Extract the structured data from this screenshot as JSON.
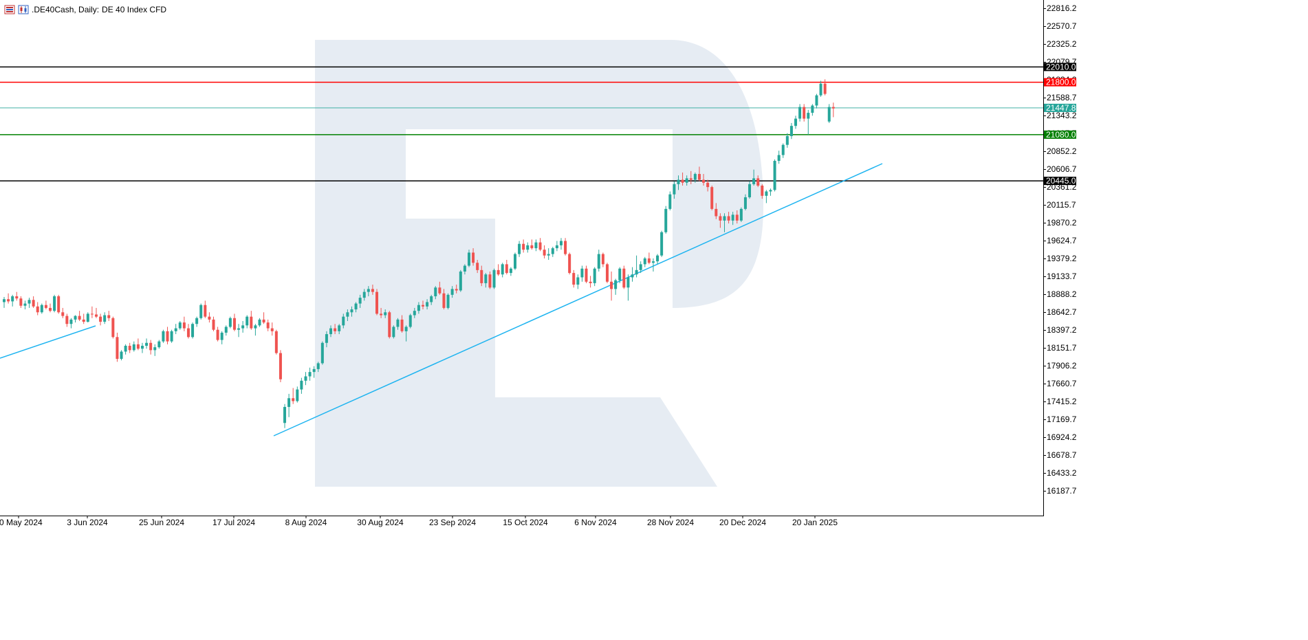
{
  "header": {
    "symbol": ".DE40Cash, Daily:",
    "description": "DE 40 Index CFD",
    "icons": [
      "chart-list-icon",
      "candles-icon"
    ]
  },
  "watermark": {
    "icon": "r-logo-icon"
  },
  "colors": {
    "up": "#26a69a",
    "down": "#ef5350",
    "trendline": "#1eb4f0",
    "resistance_black": "#000000",
    "resistance_red": "#ff0000",
    "support_green": "#008000",
    "current_price": "#26a69a",
    "watermark": "#e6ecf3"
  },
  "chart_data": {
    "type": "candlestick",
    "title": ".DE40Cash, Daily: DE 40 Index CFD",
    "timeframe": "Daily",
    "y_tick_labels": [
      "22816.2",
      "22570.7",
      "22325.2",
      "22079.7",
      "21834.2",
      "21588.7",
      "21343.2",
      "21097.7",
      "20852.2",
      "20606.7",
      "20361.2",
      "20115.7",
      "19870.2",
      "19624.7",
      "19379.2",
      "19133.7",
      "18888.2",
      "18642.7",
      "18397.2",
      "18151.7",
      "17906.2",
      "17660.7",
      "17415.2",
      "17169.7",
      "16924.2",
      "16678.7",
      "16433.2",
      "16187.7"
    ],
    "x_tick_labels": [
      "10 May 2024",
      "3 Jun 2024",
      "25 Jun 2024",
      "17 Jul 2024",
      "8 Aug 2024",
      "30 Aug 2024",
      "23 Sep 2024",
      "15 Oct 2024",
      "6 Nov 2024",
      "28 Nov 2024",
      "20 Dec 2024",
      "20 Jan 2025"
    ],
    "ylim": [
      16100,
      22900
    ],
    "levels": [
      {
        "value": 22010.0,
        "label": "22010.0",
        "color": "#000000"
      },
      {
        "value": 21800.0,
        "label": "21800.0",
        "color": "#ff0000"
      },
      {
        "value": 21447.8,
        "label": "21447.8",
        "color": "#26a69a",
        "kind": "current"
      },
      {
        "value": 21080.0,
        "label": "21080.0",
        "color": "#008000"
      },
      {
        "value": 20445.0,
        "label": "20445.0",
        "color": "#000000"
      }
    ],
    "trendlines": [
      {
        "from": {
          "bar": 0,
          "price": 18080
        },
        "to": {
          "bar": 23,
          "price": 18530
        }
      },
      {
        "from": {
          "bar": 67,
          "price": 17050
        },
        "to": {
          "bar": 214,
          "price": 20710
        }
      }
    ],
    "candles": [
      [
        18780,
        18850,
        18700,
        18820
      ],
      [
        18820,
        18900,
        18760,
        18790
      ],
      [
        18790,
        18880,
        18720,
        18860
      ],
      [
        18860,
        18920,
        18800,
        18830
      ],
      [
        18830,
        18860,
        18700,
        18730
      ],
      [
        18730,
        18800,
        18680,
        18760
      ],
      [
        18760,
        18840,
        18700,
        18810
      ],
      [
        18810,
        18860,
        18700,
        18720
      ],
      [
        18720,
        18780,
        18600,
        18640
      ],
      [
        18640,
        18760,
        18620,
        18740
      ],
      [
        18740,
        18800,
        18680,
        18700
      ],
      [
        18700,
        18760,
        18640,
        18660
      ],
      [
        18660,
        18880,
        18640,
        18860
      ],
      [
        18860,
        18880,
        18620,
        18640
      ],
      [
        18640,
        18700,
        18560,
        18590
      ],
      [
        18590,
        18620,
        18440,
        18480
      ],
      [
        18480,
        18560,
        18420,
        18540
      ],
      [
        18540,
        18600,
        18500,
        18590
      ],
      [
        18590,
        18660,
        18520,
        18540
      ],
      [
        18540,
        18620,
        18480,
        18510
      ],
      [
        18510,
        18640,
        18500,
        18620
      ],
      [
        18620,
        18720,
        18560,
        18610
      ],
      [
        18610,
        18700,
        18560,
        18580
      ],
      [
        18580,
        18620,
        18460,
        18510
      ],
      [
        18510,
        18640,
        18480,
        18600
      ],
      [
        18600,
        18660,
        18520,
        18560
      ],
      [
        18560,
        18580,
        18280,
        18300
      ],
      [
        18300,
        18360,
        17960,
        18000
      ],
      [
        18000,
        18120,
        17980,
        18100
      ],
      [
        18100,
        18200,
        18060,
        18180
      ],
      [
        18180,
        18220,
        18080,
        18120
      ],
      [
        18120,
        18240,
        18100,
        18200
      ],
      [
        18200,
        18280,
        18120,
        18140
      ],
      [
        18140,
        18220,
        18080,
        18180
      ],
      [
        18180,
        18280,
        18140,
        18220
      ],
      [
        18220,
        18260,
        18060,
        18120
      ],
      [
        18120,
        18200,
        18040,
        18160
      ],
      [
        18160,
        18260,
        18140,
        18240
      ],
      [
        18240,
        18400,
        18220,
        18380
      ],
      [
        18380,
        18440,
        18200,
        18240
      ],
      [
        18240,
        18400,
        18220,
        18380
      ],
      [
        18380,
        18480,
        18340,
        18420
      ],
      [
        18420,
        18520,
        18400,
        18500
      ],
      [
        18500,
        18580,
        18380,
        18420
      ],
      [
        18420,
        18480,
        18280,
        18300
      ],
      [
        18300,
        18500,
        18280,
        18480
      ],
      [
        18480,
        18580,
        18440,
        18560
      ],
      [
        18560,
        18760,
        18540,
        18740
      ],
      [
        18740,
        18800,
        18560,
        18580
      ],
      [
        18580,
        18640,
        18500,
        18540
      ],
      [
        18540,
        18580,
        18380,
        18400
      ],
      [
        18400,
        18440,
        18240,
        18260
      ],
      [
        18260,
        18380,
        18200,
        18360
      ],
      [
        18360,
        18460,
        18320,
        18440
      ],
      [
        18440,
        18580,
        18420,
        18560
      ],
      [
        18560,
        18620,
        18380,
        18400
      ],
      [
        18400,
        18480,
        18300,
        18420
      ],
      [
        18420,
        18520,
        18360,
        18460
      ],
      [
        18460,
        18600,
        18420,
        18580
      ],
      [
        18580,
        18660,
        18400,
        18420
      ],
      [
        18420,
        18480,
        18320,
        18460
      ],
      [
        18460,
        18560,
        18440,
        18540
      ],
      [
        18540,
        18640,
        18480,
        18500
      ],
      [
        18500,
        18540,
        18380,
        18420
      ],
      [
        18420,
        18500,
        18320,
        18380
      ],
      [
        18380,
        18400,
        18060,
        18080
      ],
      [
        18080,
        18120,
        17680,
        17720
      ],
      [
        17120,
        17380,
        17050,
        17340
      ],
      [
        17340,
        17520,
        17200,
        17460
      ],
      [
        17460,
        17600,
        17380,
        17420
      ],
      [
        17420,
        17620,
        17400,
        17580
      ],
      [
        17580,
        17740,
        17520,
        17700
      ],
      [
        17700,
        17820,
        17640,
        17760
      ],
      [
        17760,
        17880,
        17700,
        17820
      ],
      [
        17820,
        17900,
        17740,
        17860
      ],
      [
        17860,
        17960,
        17820,
        17940
      ],
      [
        17940,
        18240,
        17920,
        18220
      ],
      [
        18220,
        18380,
        18160,
        18340
      ],
      [
        18340,
        18460,
        18300,
        18420
      ],
      [
        18420,
        18480,
        18340,
        18380
      ],
      [
        18380,
        18480,
        18340,
        18460
      ],
      [
        18460,
        18620,
        18420,
        18580
      ],
      [
        18580,
        18680,
        18520,
        18640
      ],
      [
        18640,
        18720,
        18580,
        18680
      ],
      [
        18680,
        18780,
        18640,
        18760
      ],
      [
        18760,
        18880,
        18700,
        18840
      ],
      [
        18840,
        18960,
        18800,
        18920
      ],
      [
        18920,
        19000,
        18860,
        18960
      ],
      [
        18960,
        19020,
        18880,
        18920
      ],
      [
        18920,
        18960,
        18600,
        18620
      ],
      [
        18620,
        18700,
        18560,
        18600
      ],
      [
        18600,
        18680,
        18560,
        18640
      ],
      [
        18640,
        18660,
        18280,
        18300
      ],
      [
        18300,
        18460,
        18280,
        18440
      ],
      [
        18440,
        18560,
        18400,
        18540
      ],
      [
        18540,
        18600,
        18360,
        18380
      ],
      [
        18380,
        18460,
        18240,
        18440
      ],
      [
        18440,
        18620,
        18420,
        18600
      ],
      [
        18600,
        18700,
        18560,
        18660
      ],
      [
        18660,
        18780,
        18620,
        18740
      ],
      [
        18740,
        18800,
        18680,
        18720
      ],
      [
        18720,
        18820,
        18680,
        18780
      ],
      [
        18780,
        18880,
        18740,
        18860
      ],
      [
        18860,
        19000,
        18820,
        18980
      ],
      [
        18980,
        19060,
        18880,
        18900
      ],
      [
        18900,
        18960,
        18680,
        18700
      ],
      [
        18700,
        18900,
        18680,
        18880
      ],
      [
        18880,
        19000,
        18840,
        18960
      ],
      [
        18960,
        19020,
        18900,
        18940
      ],
      [
        18940,
        19220,
        18920,
        19200
      ],
      [
        19200,
        19300,
        19160,
        19280
      ],
      [
        19280,
        19500,
        19260,
        19460
      ],
      [
        19460,
        19520,
        19280,
        19320
      ],
      [
        19320,
        19360,
        19180,
        19220
      ],
      [
        19220,
        19280,
        19000,
        19040
      ],
      [
        19040,
        19180,
        18980,
        19160
      ],
      [
        19160,
        19200,
        18960,
        18980
      ],
      [
        18980,
        19240,
        18960,
        19220
      ],
      [
        19220,
        19300,
        19140,
        19160
      ],
      [
        19160,
        19320,
        19120,
        19300
      ],
      [
        19300,
        19360,
        19160,
        19180
      ],
      [
        19180,
        19260,
        19140,
        19240
      ],
      [
        19240,
        19460,
        19220,
        19440
      ],
      [
        19440,
        19620,
        19400,
        19580
      ],
      [
        19580,
        19640,
        19460,
        19500
      ],
      [
        19500,
        19600,
        19460,
        19560
      ],
      [
        19560,
        19640,
        19500,
        19520
      ],
      [
        19520,
        19640,
        19480,
        19600
      ],
      [
        19600,
        19660,
        19480,
        19500
      ],
      [
        19500,
        19560,
        19380,
        19420
      ],
      [
        19420,
        19520,
        19360,
        19440
      ],
      [
        19440,
        19540,
        19400,
        19520
      ],
      [
        19520,
        19620,
        19480,
        19560
      ],
      [
        19560,
        19660,
        19500,
        19620
      ],
      [
        19620,
        19660,
        19420,
        19440
      ],
      [
        19440,
        19460,
        19160,
        19180
      ],
      [
        19180,
        19220,
        18980,
        19020
      ],
      [
        19020,
        19160,
        18960,
        19120
      ],
      [
        19120,
        19280,
        19060,
        19240
      ],
      [
        19240,
        19280,
        19040,
        19060
      ],
      [
        19060,
        19140,
        18980,
        19040
      ],
      [
        19040,
        19260,
        19000,
        19240
      ],
      [
        19240,
        19500,
        19200,
        19440
      ],
      [
        19440,
        19460,
        19260,
        19300
      ],
      [
        19300,
        19320,
        19040,
        19060
      ],
      [
        19060,
        19200,
        18800,
        18960
      ],
      [
        18960,
        19100,
        18880,
        19080
      ],
      [
        19080,
        19260,
        19040,
        19240
      ],
      [
        19240,
        19280,
        18960,
        18980
      ],
      [
        18980,
        19160,
        18800,
        19120
      ],
      [
        19120,
        19260,
        19060,
        19160
      ],
      [
        19160,
        19420,
        19120,
        19220
      ],
      [
        19220,
        19340,
        19180,
        19300
      ],
      [
        19300,
        19400,
        19260,
        19380
      ],
      [
        19380,
        19460,
        19300,
        19320
      ],
      [
        19320,
        19380,
        19200,
        19340
      ],
      [
        19340,
        19440,
        19300,
        19420
      ],
      [
        19420,
        19760,
        19400,
        19740
      ],
      [
        19740,
        20100,
        19720,
        20060
      ],
      [
        20060,
        20300,
        20040,
        20260
      ],
      [
        20260,
        20440,
        20200,
        20400
      ],
      [
        20400,
        20520,
        20320,
        20460
      ],
      [
        20460,
        20560,
        20380,
        20420
      ],
      [
        20420,
        20520,
        20380,
        20480
      ],
      [
        20480,
        20580,
        20400,
        20460
      ],
      [
        20460,
        20560,
        20420,
        20540
      ],
      [
        20540,
        20640,
        20440,
        20460
      ],
      [
        20460,
        20540,
        20380,
        20420
      ],
      [
        20420,
        20460,
        20300,
        20360
      ],
      [
        20360,
        20380,
        20040,
        20060
      ],
      [
        20060,
        20140,
        19920,
        19960
      ],
      [
        19960,
        20000,
        19800,
        19900
      ],
      [
        19900,
        20000,
        19740,
        19960
      ],
      [
        19960,
        20020,
        19860,
        19900
      ],
      [
        19900,
        20020,
        19840,
        19980
      ],
      [
        19980,
        20040,
        19860,
        19900
      ],
      [
        19900,
        20080,
        19880,
        20060
      ],
      [
        20060,
        20260,
        20040,
        20220
      ],
      [
        20220,
        20440,
        20200,
        20400
      ],
      [
        20400,
        20600,
        20380,
        20480
      ],
      [
        20480,
        20520,
        20360,
        20380
      ],
      [
        20380,
        20400,
        20200,
        20240
      ],
      [
        20240,
        20320,
        20140,
        20300
      ],
      [
        20300,
        20340,
        20240,
        20320
      ],
      [
        20320,
        20740,
        20300,
        20720
      ],
      [
        20720,
        20860,
        20680,
        20800
      ],
      [
        20800,
        20960,
        20760,
        20940
      ],
      [
        20940,
        21100,
        20900,
        21060
      ],
      [
        21060,
        21240,
        21020,
        21200
      ],
      [
        21200,
        21340,
        21160,
        21300
      ],
      [
        21300,
        21500,
        21260,
        21460
      ],
      [
        21460,
        21500,
        21260,
        21300
      ],
      [
        21300,
        21420,
        21080,
        21380
      ],
      [
        21380,
        21500,
        21340,
        21480
      ],
      [
        21480,
        21640,
        21440,
        21620
      ],
      [
        21620,
        21820,
        21600,
        21780
      ],
      [
        21780,
        21840,
        21620,
        21640
      ],
      [
        21260,
        21500,
        21240,
        21460
      ],
      [
        21460,
        21520,
        21320,
        21440
      ]
    ]
  }
}
